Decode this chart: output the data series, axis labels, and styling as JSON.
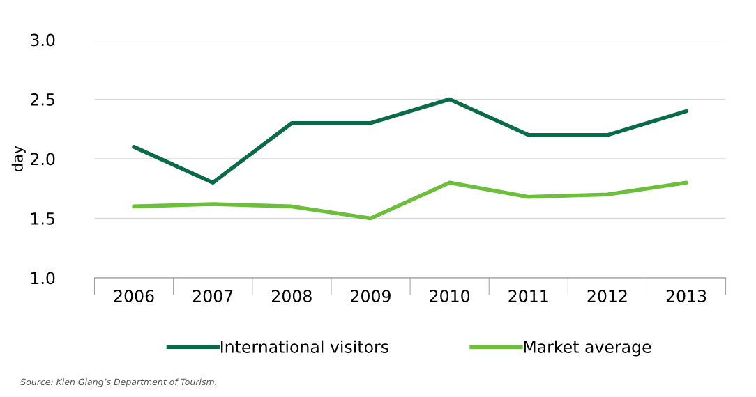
{
  "chart_data": {
    "type": "line",
    "ylabel": "day",
    "categories": [
      "2006",
      "2007",
      "2008",
      "2009",
      "2010",
      "2011",
      "2012",
      "2013"
    ],
    "series": [
      {
        "name": "International visitors",
        "color": "#0a6b48",
        "values": [
          2.1,
          1.8,
          2.3,
          2.3,
          2.5,
          2.2,
          2.2,
          2.4
        ]
      },
      {
        "name": "Market average",
        "color": "#6cbf3a",
        "values": [
          1.6,
          1.62,
          1.6,
          1.5,
          1.8,
          1.68,
          1.7,
          1.8
        ]
      }
    ],
    "ylim": [
      1.0,
      3.0
    ],
    "yticks": [
      {
        "value": 1.0,
        "label": "1.0"
      },
      {
        "value": 1.5,
        "label": "1.5"
      },
      {
        "value": 2.0,
        "label": "2.0"
      },
      {
        "value": 2.5,
        "label": "2.5"
      },
      {
        "value": 3.0,
        "label": "3.0"
      }
    ],
    "grid": "y",
    "legend": "bottom",
    "marker": "none",
    "line_style": "solid",
    "annotations": [
      "Source: Kien Giang’s Department of Tourism."
    ]
  }
}
